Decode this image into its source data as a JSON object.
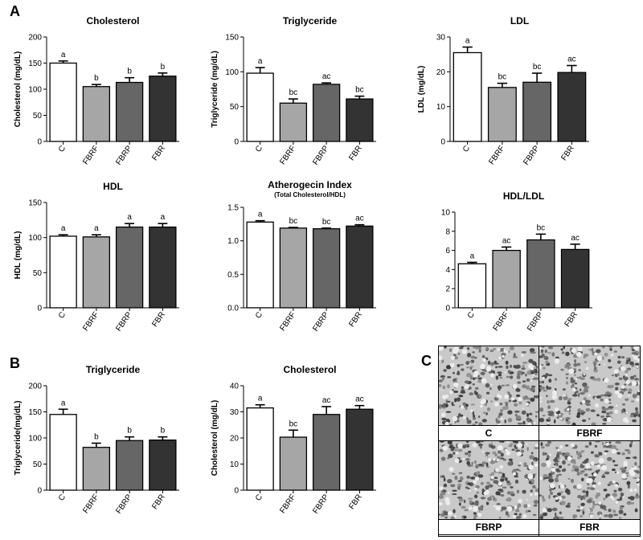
{
  "panels": {
    "a": "A",
    "b": "B",
    "c": "C"
  },
  "chart_data": [
    {
      "type": "bar",
      "title": "Cholesterol",
      "subtitle": "",
      "ylabel": "Cholesterol (mg/dL)",
      "categories": [
        "C",
        "FBRF",
        "FBRP",
        "FBR"
      ],
      "values": [
        150,
        105,
        113,
        125
      ],
      "errors": [
        4,
        4,
        9,
        6
      ],
      "letters": [
        "a",
        "b",
        "b",
        "b"
      ],
      "ylim": [
        0,
        200
      ],
      "yticks": [
        "0",
        "50",
        "100",
        "150",
        "200"
      ]
    },
    {
      "type": "bar",
      "title": "Triglyceride",
      "subtitle": "",
      "ylabel": "Triglyceride (mg/dL)",
      "categories": [
        "C",
        "FBRF",
        "FBRP",
        "FBR"
      ],
      "values": [
        98,
        55,
        82,
        61
      ],
      "errors": [
        8,
        6,
        2,
        4
      ],
      "letters": [
        "a",
        "bc",
        "ac",
        "bc"
      ],
      "ylim": [
        0,
        150
      ],
      "yticks": [
        "0",
        "50",
        "100",
        "150"
      ]
    },
    {
      "type": "bar",
      "title": "LDL",
      "subtitle": "",
      "ylabel": "LDL (mg/dL)",
      "categories": [
        "C",
        "FBRF",
        "FBRP",
        "FBR"
      ],
      "values": [
        25.5,
        15.5,
        17,
        19.8
      ],
      "errors": [
        1.6,
        1.2,
        2.6,
        2
      ],
      "letters": [
        "a",
        "bc",
        "bc",
        "ac"
      ],
      "ylim": [
        0,
        30
      ],
      "yticks": [
        "0",
        "10",
        "20",
        "30"
      ]
    },
    {
      "type": "bar",
      "title": "HDL",
      "subtitle": "",
      "ylabel": "HDL (mg/dL)",
      "categories": [
        "C",
        "FBRF",
        "FBRP",
        "FBR"
      ],
      "values": [
        102,
        101,
        115,
        115
      ],
      "errors": [
        2,
        3,
        5,
        5
      ],
      "letters": [
        "a",
        "a",
        "a",
        "a"
      ],
      "ylim": [
        0,
        150
      ],
      "yticks": [
        "0",
        "50",
        "100",
        "150"
      ]
    },
    {
      "type": "bar",
      "title": "Atherogecin Index",
      "subtitle": "(Total Cholesterol/HDL)",
      "ylabel": "",
      "categories": [
        "C",
        "FBRF",
        "FBRP",
        "FBR"
      ],
      "values": [
        1.28,
        1.19,
        1.18,
        1.22
      ],
      "errors": [
        0.02,
        0.01,
        0.01,
        0.02
      ],
      "letters": [
        "a",
        "bc",
        "bc",
        "ac"
      ],
      "ylim": [
        0,
        1.5
      ],
      "yticks": [
        "0.0",
        "0.5",
        "1.0",
        "1.5"
      ]
    },
    {
      "type": "bar",
      "title": "HDL/LDL",
      "subtitle": "",
      "ylabel": "",
      "categories": [
        "C",
        "FBRF",
        "FBRP",
        "FBR"
      ],
      "values": [
        4.6,
        6,
        7.1,
        6.1
      ],
      "errors": [
        0.15,
        0.35,
        0.6,
        0.55
      ],
      "letters": [
        "a",
        "ac",
        "bc",
        "ac"
      ],
      "ylim": [
        0,
        10
      ],
      "yticks": [
        "0",
        "2",
        "4",
        "6",
        "8",
        "10"
      ]
    },
    {
      "type": "bar",
      "title": "Triglyceride",
      "subtitle": "",
      "ylabel": "Triglyceride(mg/dL)",
      "categories": [
        "C",
        "FBRF",
        "FBRP",
        "FBR"
      ],
      "values": [
        145,
        82,
        95,
        96
      ],
      "errors": [
        10,
        8,
        7,
        6
      ],
      "letters": [
        "a",
        "b",
        "b",
        "b"
      ],
      "ylim": [
        0,
        200
      ],
      "yticks": [
        "0",
        "50",
        "100",
        "150",
        "200"
      ]
    },
    {
      "type": "bar",
      "title": "Cholesterol",
      "subtitle": "",
      "ylabel": "Cholesterol (mg/dL)",
      "categories": [
        "C",
        "FBRF",
        "FBRP",
        "FBR"
      ],
      "values": [
        31.5,
        20.3,
        29,
        31
      ],
      "errors": [
        1.2,
        2.7,
        3,
        1.4
      ],
      "letters": [
        "a",
        "bc",
        "ac",
        "ac"
      ],
      "ylim": [
        0,
        40
      ],
      "yticks": [
        "0",
        "10",
        "20",
        "30",
        "40"
      ]
    }
  ],
  "bar_colors": [
    "#ffffff",
    "#a6a6a6",
    "#666666",
    "#333333"
  ],
  "micrographs": [
    "C",
    "FBRF",
    "FBRP",
    "FBR"
  ]
}
